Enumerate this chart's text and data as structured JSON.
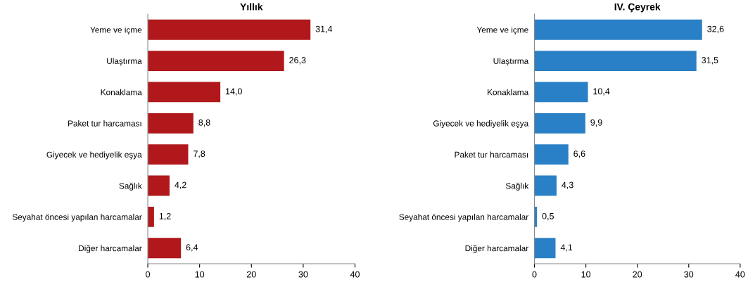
{
  "chart_data": [
    {
      "type": "bar",
      "orientation": "horizontal",
      "title": "Yıllık",
      "categories": [
        "Yeme ve içme",
        "Ulaştırma",
        "Konaklama",
        "Paket tur harcaması",
        "Giyecek ve hediyelik eşya",
        "Sağlık",
        "Seyahat öncesi yapılan harcamalar",
        "Diğer harcamalar"
      ],
      "values": [
        31.4,
        26.3,
        14.0,
        8.8,
        7.8,
        4.2,
        1.2,
        6.4
      ],
      "value_labels": [
        "31,4",
        "26,3",
        "14,0",
        "8,8",
        "7,8",
        "4,2",
        "1,2",
        "6,4"
      ],
      "color": "#b0181b",
      "xlim": [
        0,
        40
      ],
      "xticks": [
        0,
        10,
        20,
        30,
        40
      ],
      "grid": false
    },
    {
      "type": "bar",
      "orientation": "horizontal",
      "title": "IV. Çeyrek",
      "categories": [
        "Yeme ve içme",
        "Ulaştırma",
        "Konaklama",
        "Giyecek ve hediyelik eşya",
        "Paket tur harcaması",
        "Sağlık",
        "Seyahat öncesi yapılan harcamalar",
        "Diğer harcamalar"
      ],
      "values": [
        32.6,
        31.5,
        10.4,
        9.9,
        6.6,
        4.3,
        0.5,
        4.1
      ],
      "value_labels": [
        "32,6",
        "31,5",
        "10,4",
        "9,9",
        "6,6",
        "4,3",
        "0,5",
        "4,1"
      ],
      "color": "#2a80c6",
      "xlim": [
        0,
        40
      ],
      "xticks": [
        0,
        10,
        20,
        30,
        40
      ],
      "grid": false
    }
  ]
}
